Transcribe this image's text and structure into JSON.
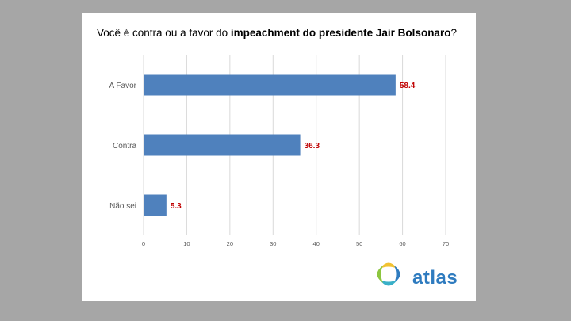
{
  "title": {
    "prefix": "Você é contra ou a favor do ",
    "emphasis": "impeachment do presidente Jair Bolsonaro",
    "suffix": "?"
  },
  "brand": {
    "logo_text": "atlas",
    "colors": {
      "text": "#2e7bbf",
      "ring_top": "#f2c230",
      "ring_right": "#2e7bbf",
      "ring_bottom": "#3ab0c8",
      "ring_left": "#8cc63f"
    }
  },
  "colors": {
    "bar": "#4f81bd",
    "data_label": "#c00000",
    "grid": "#d9d9d9",
    "background": "#a6a6a6"
  },
  "chart_data": {
    "type": "bar",
    "orientation": "horizontal",
    "categories": [
      "A Favor",
      "Contra",
      "Não sei"
    ],
    "values": [
      58.4,
      36.3,
      5.3
    ],
    "data_labels": [
      "58.4",
      "36.3",
      "5.3"
    ],
    "xlim": [
      0,
      70
    ],
    "xticks": [
      0,
      10,
      20,
      30,
      40,
      50,
      60,
      70
    ],
    "xlabel": "",
    "ylabel": "",
    "grid": true,
    "legend": false
  }
}
